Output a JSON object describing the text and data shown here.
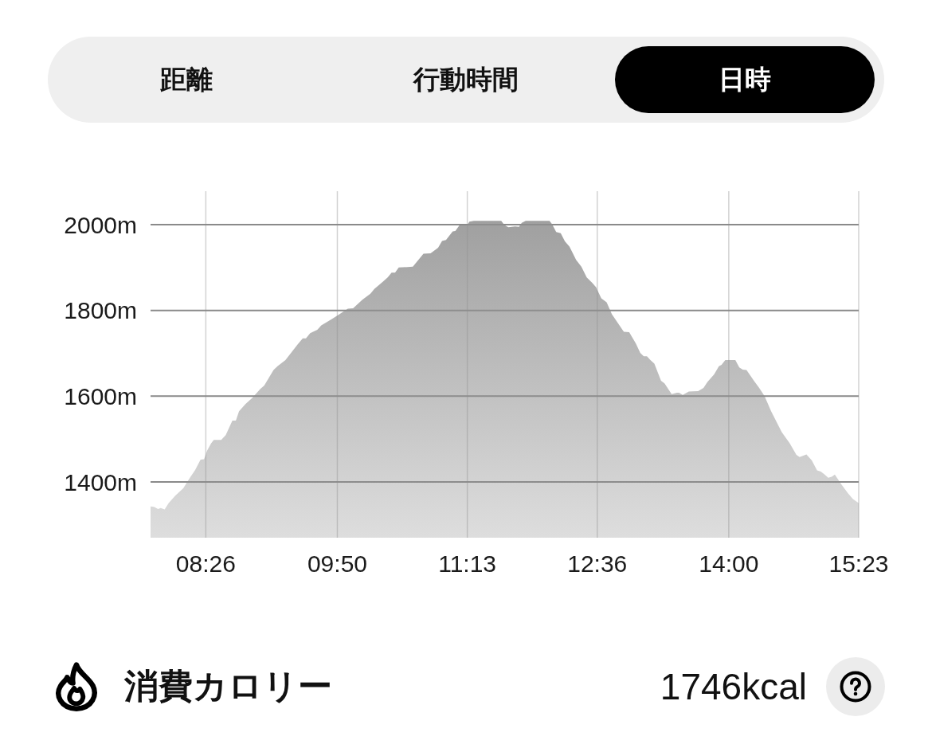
{
  "chart_data": {
    "type": "area",
    "color": "#a0a0a0",
    "x": [
      7.845,
      7.882,
      7.925,
      7.953,
      7.995,
      8.038,
      8.108,
      8.193,
      8.264,
      8.32,
      8.377,
      8.414,
      8.447,
      8.49,
      8.518,
      8.597,
      8.645,
      8.716,
      8.753,
      8.787,
      8.857,
      8.928,
      9.013,
      9.055,
      9.154,
      9.196,
      9.281,
      9.408,
      9.465,
      9.499,
      9.544,
      9.62,
      9.662,
      9.761,
      9.832,
      9.945,
      10.001,
      10.1,
      10.185,
      10.227,
      10.312,
      10.369,
      10.411,
      10.448,
      10.487,
      10.637,
      10.75,
      10.826,
      10.906,
      10.948,
      10.99,
      11.061,
      11.089,
      11.132,
      11.216,
      11.239,
      11.287,
      11.578,
      11.612,
      11.654,
      11.725,
      11.767,
      11.796,
      11.838,
      12.092,
      12.12,
      12.163,
      12.211,
      12.256,
      12.304,
      12.375,
      12.431,
      12.488,
      12.544,
      12.587,
      12.643,
      12.7,
      12.756,
      12.883,
      12.94,
      13.01,
      13.058,
      13.095,
      13.129,
      13.166,
      13.208,
      13.279,
      13.316,
      13.392,
      13.448,
      13.471,
      13.51,
      13.575,
      13.674,
      13.731,
      13.773,
      13.844,
      13.895,
      13.923,
      13.963,
      14.07,
      14.112,
      14.149,
      14.189,
      14.268,
      14.324,
      14.381,
      14.451,
      14.564,
      14.649,
      14.72,
      14.754,
      14.827,
      14.884,
      14.94,
      14.98,
      15.016,
      15.059,
      15.096,
      15.129,
      15.2,
      15.271,
      15.322,
      15.383
    ],
    "values": [
      1343,
      1342,
      1337,
      1339,
      1336,
      1351,
      1368,
      1385,
      1410,
      1428,
      1452,
      1453,
      1473,
      1490,
      1498,
      1498,
      1509,
      1543,
      1543,
      1565,
      1582,
      1596,
      1617,
      1625,
      1661,
      1670,
      1684,
      1720,
      1735,
      1735,
      1747,
      1755,
      1765,
      1778,
      1788,
      1804,
      1805,
      1825,
      1839,
      1850,
      1866,
      1877,
      1888,
      1888,
      1900,
      1902,
      1932,
      1933,
      1946,
      1962,
      1964,
      1984,
      1985,
      1998,
      1999,
      2007,
      2009,
      2009,
      1999,
      1994,
      1996,
      1995,
      2004,
      2009,
      2009,
      2001,
      1983,
      1980,
      1961,
      1949,
      1918,
      1902,
      1877,
      1865,
      1854,
      1828,
      1819,
      1791,
      1750,
      1749,
      1723,
      1701,
      1693,
      1693,
      1684,
      1676,
      1636,
      1630,
      1605,
      1608,
      1608,
      1603,
      1611,
      1612,
      1619,
      1633,
      1651,
      1670,
      1673,
      1684,
      1684,
      1667,
      1662,
      1661,
      1636,
      1619,
      1600,
      1565,
      1516,
      1490,
      1463,
      1458,
      1464,
      1450,
      1427,
      1424,
      1418,
      1410,
      1412,
      1417,
      1394,
      1373,
      1360,
      1351
    ],
    "xlim": [
      7.845,
      15.3833
    ],
    "xticks": [
      {
        "value": 8.4333,
        "label": "08:26"
      },
      {
        "value": 9.8333,
        "label": "09:50"
      },
      {
        "value": 11.2167,
        "label": "11:13"
      },
      {
        "value": 12.6,
        "label": "12:36"
      },
      {
        "value": 14,
        "label": "14:00"
      },
      {
        "value": 15.3833,
        "label": "15:23"
      }
    ],
    "ylim": [
      1270,
      2078
    ],
    "yticks": [
      {
        "value": 1400,
        "label": "1400m"
      },
      {
        "value": 1600,
        "label": "1600m"
      },
      {
        "value": 1800,
        "label": "1800m"
      },
      {
        "value": 2000,
        "label": "2000m"
      }
    ],
    "grid": true,
    "annotations": [
      "距離",
      "行動時間",
      "日時",
      "消費カロリー",
      "1746kcal"
    ]
  }
}
